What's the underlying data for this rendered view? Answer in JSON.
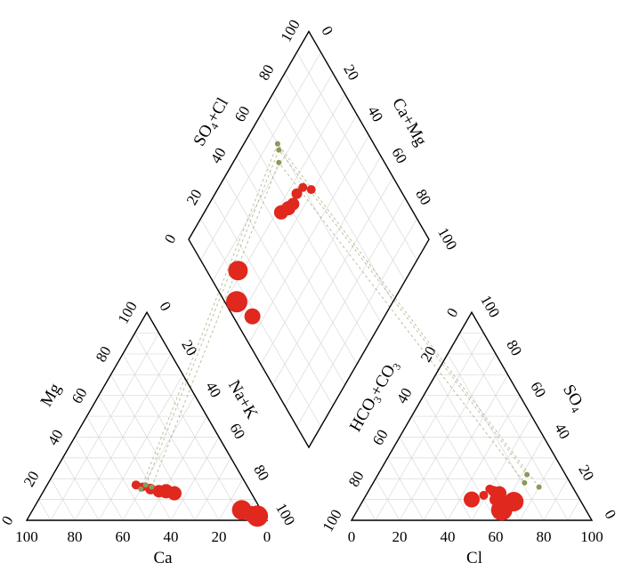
{
  "chart_data": {
    "type": "scatter",
    "subtype": "piper-diagram",
    "title": "",
    "grid": true,
    "colors": {
      "sample": "#e0281e",
      "reference": "#8a9a5b",
      "axis": "#000000",
      "grid": "#d9d9d9"
    },
    "ticks": [
      "0",
      "20",
      "40",
      "60",
      "80",
      "100"
    ],
    "cation_triangle": {
      "labels": {
        "Ca": "Ca",
        "Mg": "Mg",
        "NaK": "Na+K"
      },
      "tick_order": {
        "Ca": "descending",
        "Mg": "ascending",
        "NaK": "ascending"
      }
    },
    "anion_triangle": {
      "labels": {
        "Cl": "Cl",
        "SO4": "SO",
        "SO4_sub": "4",
        "HCO3_CO3": "HCO",
        "HCO3_sub": "3",
        "plus_CO": "+CO",
        "CO3_sub": "3"
      },
      "tick_order": {
        "Cl": "ascending",
        "SO4": "ascending",
        "HCO3_CO3": "descending"
      }
    },
    "diamond": {
      "labels": {
        "SO4_Cl_pre": "SO",
        "SO4_Cl_sub": "4",
        "SO4_Cl_post": "+Cl",
        "CaMg": "Ca+Mg"
      }
    },
    "series": [
      {
        "name": "",
        "color": "#e0281e",
        "points": [
          {
            "cation": {
              "Ca": 46,
              "Mg": 17,
              "NaK": 37
            },
            "anion": {
              "Cl": 49,
              "SO4": 12,
              "HCO3_CO3": 39
            },
            "size": 5
          },
          {
            "cation": {
              "Ca": 44,
              "Mg": 16,
              "NaK": 40
            },
            "anion": {
              "Cl": 50,
              "SO4": 15,
              "HCO3_CO3": 35
            },
            "size": 5
          },
          {
            "cation": {
              "Ca": 41,
              "Mg": 15,
              "NaK": 44
            },
            "anion": {
              "Cl": 52,
              "SO4": 14,
              "HCO3_CO3": 34
            },
            "size": 6
          },
          {
            "cation": {
              "Ca": 38,
              "Mg": 14,
              "NaK": 48
            },
            "anion": {
              "Cl": 55,
              "SO4": 10,
              "HCO3_CO3": 35
            },
            "size": 7
          },
          {
            "cation": {
              "Ca": 35,
              "Mg": 14,
              "NaK": 51
            },
            "anion": {
              "Cl": 58,
              "SO4": 8,
              "HCO3_CO3": 34
            },
            "size": 8
          },
          {
            "cation": {
              "Ca": 32,
              "Mg": 13,
              "NaK": 55
            },
            "anion": {
              "Cl": 55,
              "SO4": 13,
              "HCO3_CO3": 32
            },
            "size": 8
          },
          {
            "cation": {
              "Ca": 8,
              "Mg": 5,
              "NaK": 87
            },
            "anion": {
              "Cl": 63,
              "SO4": 9,
              "HCO3_CO3": 28
            },
            "size": 11
          },
          {
            "cation": {
              "Ca": 5,
              "Mg": 3,
              "NaK": 92
            },
            "anion": {
              "Cl": 45,
              "SO4": 10,
              "HCO3_CO3": 45
            },
            "size": 9
          },
          {
            "cation": {
              "Ca": 3,
              "Mg": 2,
              "NaK": 95
            },
            "anion": {
              "Cl": 60,
              "SO4": 5,
              "HCO3_CO3": 35
            },
            "size": 12
          }
        ]
      },
      {
        "name": "",
        "color": "#8a9a5b",
        "points": [
          {
            "cation": {
              "Ca": 42,
              "Mg": 17,
              "NaK": 41
            },
            "anion": {
              "Cl": 62,
              "SO4": 22,
              "HCO3_CO3": 16
            },
            "size": 3
          },
          {
            "cation": {
              "Ca": 40,
              "Mg": 16,
              "NaK": 44
            },
            "anion": {
              "Cl": 63,
              "SO4": 18,
              "HCO3_CO3": 19
            },
            "size": 3
          },
          {
            "cation": {
              "Ca": 45,
              "Mg": 15,
              "NaK": 40
            },
            "anion": {
              "Cl": 70,
              "SO4": 16,
              "HCO3_CO3": 14
            },
            "size": 3
          }
        ]
      }
    ]
  }
}
